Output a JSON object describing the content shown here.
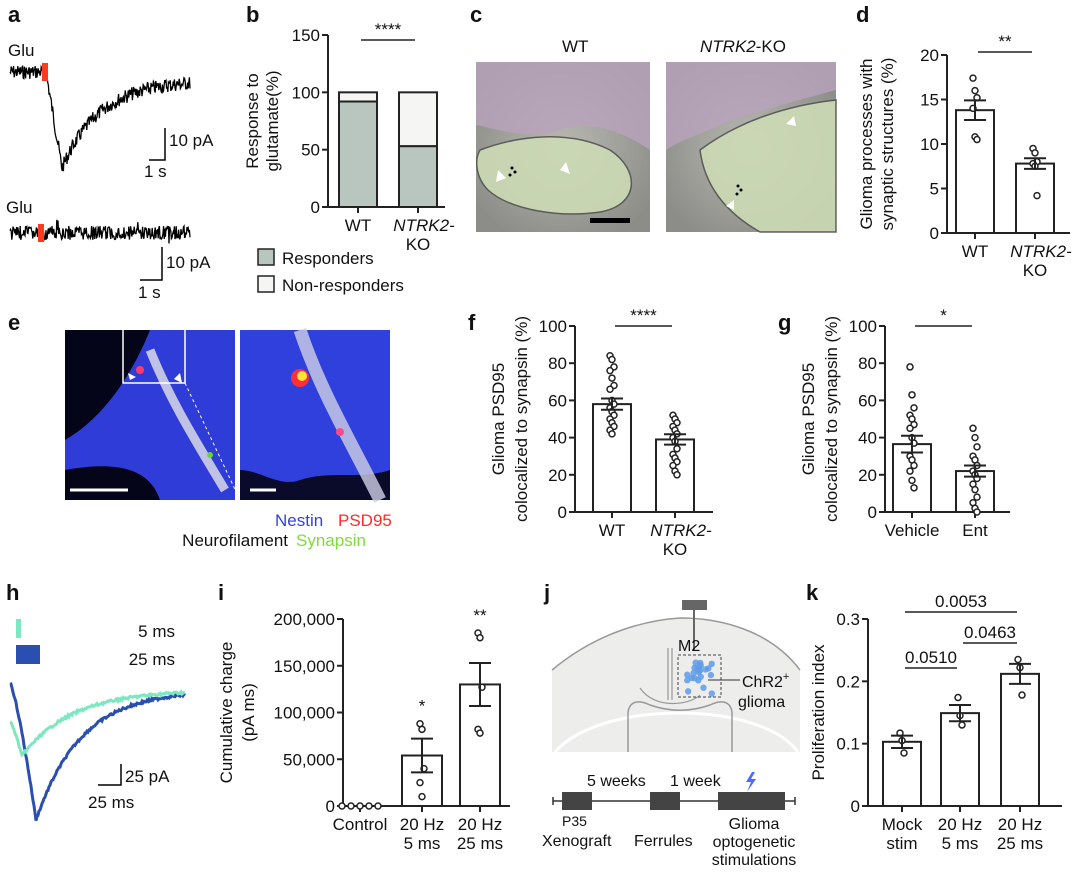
{
  "panels": {
    "a": {
      "label": "a",
      "stim_top": "Glu",
      "stim_bottom": "Glu",
      "scale_top_y": "10 pA",
      "scale_top_x": "1 s",
      "scale_bottom_y": "10 pA",
      "scale_bottom_x": "1 s"
    },
    "b": {
      "label": "b",
      "legend": [
        "Responders",
        "Non-responders"
      ]
    },
    "c": {
      "label": "c",
      "title_wt": "WT",
      "title_ko_gene": "NTRK2",
      "title_ko_suffix": "-KO"
    },
    "d": {
      "label": "d"
    },
    "e": {
      "label": "e",
      "legend": {
        "nestin": "Nestin",
        "psd95": "PSD95",
        "neurofilament": "Neurofilament",
        "synapsin": "Synapsin"
      }
    },
    "f": {
      "label": "f"
    },
    "g": {
      "label": "g"
    },
    "h": {
      "label": "h",
      "legend": [
        "5 ms",
        "25 ms"
      ],
      "scale_y": "25 pA",
      "scale_x": "25 ms"
    },
    "i": {
      "label": "i"
    },
    "j": {
      "label": "j",
      "region": "M2",
      "target": "ChR2",
      "target_sup": "+",
      "target_line2": "glioma",
      "timeline": {
        "interval1": "5 weeks",
        "interval2": "1 week",
        "age": "P35",
        "step1": "Xenograft",
        "step2": "Ferrules",
        "step3": [
          "Glioma",
          "optogenetic",
          "stimulations"
        ]
      }
    },
    "k": {
      "label": "k"
    }
  },
  "colors": {
    "red": "#ff3b1f",
    "mint": "#7ce8c0",
    "blue": "#2a4fb0",
    "responders": "#b9c5bf",
    "nonresponders": "#f5f6f3",
    "nestin": "#3340e8",
    "psd95": "#ff2a2a",
    "synapsin": "#7edc3a",
    "lightning": "#4a6cff"
  },
  "chart_data": [
    {
      "id": "b",
      "type": "bar",
      "stacked": true,
      "ylabel": [
        "Response to",
        "glutamate(%)"
      ],
      "ylim": [
        0,
        150
      ],
      "yticks": [
        0,
        50,
        100,
        150
      ],
      "categories": [
        [
          "WT"
        ],
        [
          "NTRK2-",
          "KO"
        ]
      ],
      "series": [
        {
          "name": "Responders",
          "values": [
            92,
            53
          ]
        },
        {
          "name": "Non-responders",
          "values": [
            8,
            47
          ]
        }
      ],
      "significance": [
        {
          "from": 0,
          "to": 1,
          "label": "****"
        }
      ]
    },
    {
      "id": "d",
      "type": "bar",
      "ylabel": [
        "Glioma processes with",
        "synaptic structures (%)"
      ],
      "ylim": [
        0,
        20
      ],
      "yticks": [
        0,
        5,
        10,
        15,
        20
      ],
      "categories": [
        [
          "WT"
        ],
        [
          "NTRK2-",
          "KO"
        ]
      ],
      "values": [
        13.8,
        7.8
      ],
      "sem": [
        1.1,
        0.6
      ],
      "points": [
        [
          17.4,
          16.0,
          15.2,
          14.0,
          10.8,
          10.5
        ],
        [
          9.5,
          9.0,
          8.0,
          7.8,
          7.5,
          4.2
        ]
      ],
      "significance": [
        {
          "from": 0,
          "to": 1,
          "label": "**"
        }
      ]
    },
    {
      "id": "f",
      "type": "bar",
      "ylabel": [
        "Glioma PSD95",
        "colocalized to synapsin (%)"
      ],
      "ylim": [
        0,
        100
      ],
      "yticks": [
        0,
        20,
        40,
        60,
        80,
        100
      ],
      "categories": [
        [
          "WT"
        ],
        [
          "NTRK2-",
          "KO"
        ]
      ],
      "values": [
        58,
        39
      ],
      "sem": [
        3,
        2.8
      ],
      "points": [
        [
          84,
          82,
          78,
          76,
          72,
          68,
          66,
          60,
          58,
          56,
          54,
          52,
          50,
          48,
          46,
          44,
          42
        ],
        [
          52,
          50,
          48,
          46,
          44,
          42,
          40,
          38,
          34,
          31,
          29,
          27,
          25,
          22,
          20
        ]
      ],
      "significance": [
        {
          "from": 0,
          "to": 1,
          "label": "****"
        }
      ]
    },
    {
      "id": "g",
      "type": "bar",
      "ylabel": [
        "Glioma PSD95",
        "colocalized to synapsin (%)"
      ],
      "ylim": [
        0,
        100
      ],
      "yticks": [
        0,
        20,
        40,
        60,
        80,
        100
      ],
      "categories": [
        [
          "Vehicle"
        ],
        [
          "Ent"
        ]
      ],
      "values": [
        36.5,
        22
      ],
      "sem": [
        4.5,
        3
      ],
      "points": [
        [
          78,
          63,
          56,
          52,
          50,
          47,
          45,
          40,
          37,
          30,
          28,
          25,
          22,
          17,
          13
        ],
        [
          45,
          40,
          35,
          30,
          28,
          25,
          22,
          20,
          18,
          15,
          12,
          8,
          5,
          2,
          0
        ]
      ],
      "significance": [
        {
          "from": 0,
          "to": 1,
          "label": "*"
        }
      ]
    },
    {
      "id": "i",
      "type": "bar",
      "ylabel": [
        "Cumulative charge",
        "(pA ms)"
      ],
      "ylim": [
        0,
        200000
      ],
      "yticks": [
        0,
        50000,
        100000,
        150000,
        200000
      ],
      "ytick_labels": [
        "0",
        "50,000",
        "100,000",
        "150,000",
        "200,000"
      ],
      "categories": [
        [
          "Control"
        ],
        [
          "20 Hz",
          "5 ms"
        ],
        [
          "20 Hz",
          "25 ms"
        ]
      ],
      "values": [
        0,
        54000,
        130000
      ],
      "sem": [
        0,
        18000,
        23000
      ],
      "points": [
        [
          0,
          0,
          0,
          0,
          0
        ],
        [
          88000,
          82000,
          40000,
          25000,
          10000
        ],
        [
          185000,
          180000,
          127000,
          82000,
          78000
        ]
      ],
      "annotations": [
        "",
        "*",
        "**"
      ]
    },
    {
      "id": "k",
      "type": "bar",
      "ylabel": [
        "Proliferation index"
      ],
      "ylim": [
        0,
        0.3
      ],
      "yticks": [
        0,
        0.1,
        0.2,
        0.3
      ],
      "categories": [
        [
          "Mock",
          "stim"
        ],
        [
          "20 Hz",
          "5 ms"
        ],
        [
          "20 Hz",
          "25 ms"
        ]
      ],
      "values": [
        0.103,
        0.149,
        0.212
      ],
      "sem": [
        0.01,
        0.013,
        0.016
      ],
      "points": [
        [
          0.117,
          0.105,
          0.085
        ],
        [
          0.174,
          0.145,
          0.13
        ],
        [
          0.235,
          0.222,
          0.178
        ]
      ],
      "significance": [
        {
          "from": 0,
          "to": 2,
          "label": "0.0053"
        },
        {
          "from": 1,
          "to": 2,
          "label": "0.0463"
        },
        {
          "from": 0,
          "to": 1,
          "label": "0.0510"
        }
      ]
    }
  ]
}
